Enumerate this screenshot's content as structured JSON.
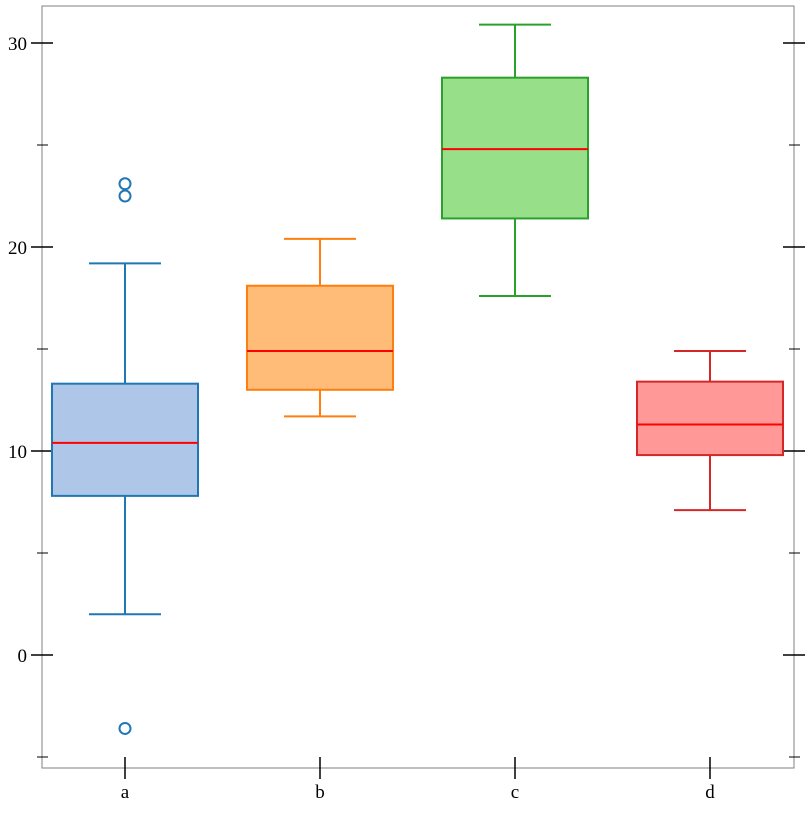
{
  "chart_data": {
    "type": "box",
    "title": "",
    "xlabel": "",
    "ylabel": "",
    "ylim": [
      -5.5,
      31.8
    ],
    "grid": false,
    "legend": "none",
    "y_ticks": [
      0,
      10,
      20,
      30
    ],
    "y_tick_labels": [
      "0",
      "10",
      "20",
      "30"
    ],
    "y_minor_ticks": [
      -5,
      5,
      15,
      25
    ],
    "categories": [
      "a",
      "b",
      "c",
      "d"
    ],
    "series": [
      {
        "category": "a",
        "whisker_low": 2.0,
        "q1": 7.8,
        "median": 10.4,
        "q3": 13.3,
        "whisker_high": 19.2,
        "outliers": [
          23.1,
          22.5,
          -3.6
        ],
        "fill": "#aec7e8",
        "stroke": "#1f77b4"
      },
      {
        "category": "b",
        "whisker_low": 11.7,
        "q1": 13.0,
        "median": 14.9,
        "q3": 18.1,
        "whisker_high": 20.4,
        "outliers": [],
        "fill": "#ffbb78",
        "stroke": "#ff7f0e"
      },
      {
        "category": "c",
        "whisker_low": 17.6,
        "q1": 21.4,
        "median": 24.8,
        "q3": 28.3,
        "whisker_high": 30.9,
        "outliers": [],
        "fill": "#98df8a",
        "stroke": "#2ca02c"
      },
      {
        "category": "d",
        "whisker_low": 7.1,
        "q1": 9.8,
        "median": 11.3,
        "q3": 13.4,
        "whisker_high": 14.9,
        "outliers": [],
        "fill": "#ff9896",
        "stroke": "#d62728"
      }
    ],
    "median_color": "#ff0000"
  }
}
